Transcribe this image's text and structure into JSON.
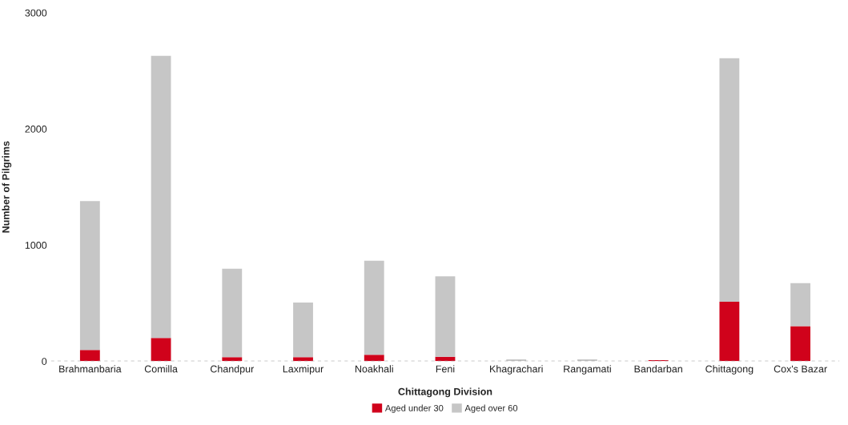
{
  "chart_data": {
    "type": "bar",
    "stacked": true,
    "xlabel": "Chittagong Division",
    "ylabel": "Number of Pilgrims",
    "categories": [
      "Brahmanbaria",
      "Comilla",
      "Chandpur",
      "Laxmipur",
      "Noakhali",
      "Feni",
      "Khagrachari",
      "Rangamati",
      "Bandarban",
      "Chittagong",
      "Cox's Bazar"
    ],
    "series": [
      {
        "name": "Aged under 30",
        "color": "#d0021b",
        "values": [
          97,
          201,
          35,
          35,
          55,
          39,
          null,
          null,
          10,
          512,
          302
        ]
      },
      {
        "name": "Aged over 60",
        "color": "#c6c6c6",
        "values": [
          1281,
          2428,
          761,
          470,
          811,
          692,
          16,
          16,
          null,
          2096,
          370
        ]
      }
    ],
    "ylim": [
      0,
      3000
    ],
    "yticks": [
      0,
      1000,
      2000,
      3000
    ],
    "grid": false,
    "legend": "bottom",
    "ref_lines": [
      {
        "axis": "y",
        "value": 0,
        "color": "#999999",
        "line_style": "dashed"
      }
    ]
  }
}
